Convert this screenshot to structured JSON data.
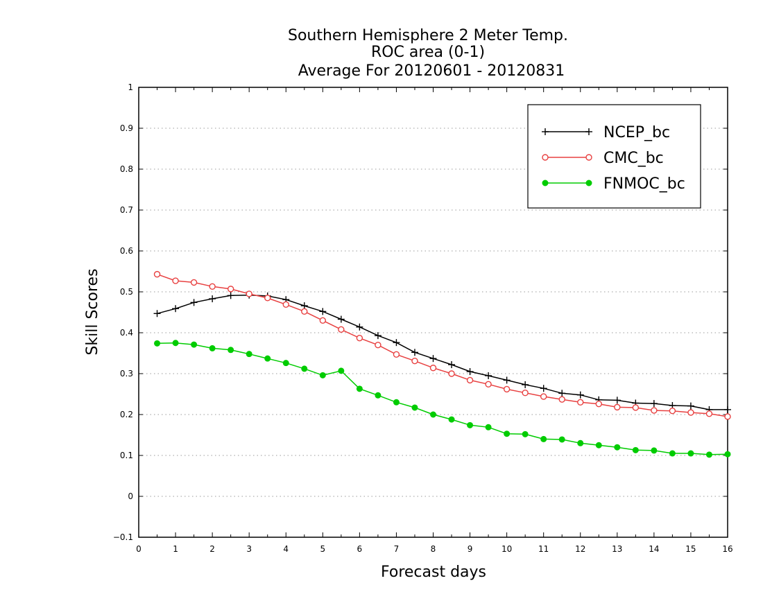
{
  "chart_data": {
    "type": "line",
    "title": [
      "Southern Hemisphere 2 Meter Temp.",
      "ROC area (0-1)",
      "Average For 20120601 - 20120831"
    ],
    "xlabel": "Forecast days",
    "ylabel": "Skill Scores",
    "xlim": [
      0,
      16
    ],
    "ylim": [
      -0.1,
      1
    ],
    "xticks": [
      "0",
      "1",
      "2",
      "3",
      "4",
      "5",
      "6",
      "7",
      "8",
      "9",
      "10",
      "11",
      "12",
      "13",
      "14",
      "15",
      "16"
    ],
    "yticks": [
      "−0.1",
      "0",
      "0.1",
      "0.2",
      "0.3",
      "0.4",
      "0.5",
      "0.6",
      "0.7",
      "0.8",
      "0.9",
      "1"
    ],
    "grid": true,
    "legend_position": "top-right",
    "x": [
      0.5,
      1,
      1.5,
      2,
      2.5,
      3,
      3.5,
      4,
      4.5,
      5,
      5.5,
      6,
      6.5,
      7,
      7.5,
      8,
      8.5,
      9,
      9.5,
      10,
      10.5,
      11,
      11.5,
      12,
      12.5,
      13,
      13.5,
      14,
      14.5,
      15,
      15.5,
      16
    ],
    "series": [
      {
        "name": "NCEP_bc",
        "color": "#000000",
        "marker": "plus",
        "values": [
          0.447,
          0.459,
          0.474,
          0.483,
          0.491,
          0.492,
          0.49,
          0.481,
          0.466,
          0.452,
          0.433,
          0.414,
          0.393,
          0.376,
          0.352,
          0.337,
          0.322,
          0.305,
          0.295,
          0.284,
          0.273,
          0.264,
          0.252,
          0.248,
          0.236,
          0.235,
          0.228,
          0.227,
          0.222,
          0.221,
          0.212,
          0.212
        ]
      },
      {
        "name": "CMC_bc",
        "color": "#e84040",
        "marker": "open-circle",
        "values": [
          0.543,
          0.527,
          0.523,
          0.513,
          0.507,
          0.495,
          0.485,
          0.469,
          0.452,
          0.43,
          0.408,
          0.387,
          0.37,
          0.347,
          0.331,
          0.314,
          0.3,
          0.284,
          0.274,
          0.262,
          0.253,
          0.244,
          0.237,
          0.23,
          0.226,
          0.218,
          0.217,
          0.21,
          0.209,
          0.205,
          0.202,
          0.195
        ]
      },
      {
        "name": "FNMOC_bc",
        "color": "#00cc00",
        "marker": "filled-circle",
        "values": [
          0.374,
          0.375,
          0.371,
          0.362,
          0.358,
          0.348,
          0.337,
          0.326,
          0.312,
          0.296,
          0.307,
          0.263,
          0.247,
          0.23,
          0.217,
          0.2,
          0.188,
          0.174,
          0.169,
          0.153,
          0.152,
          0.14,
          0.139,
          0.13,
          0.125,
          0.12,
          0.113,
          0.112,
          0.105,
          0.105,
          0.102,
          0.103
        ]
      }
    ]
  }
}
